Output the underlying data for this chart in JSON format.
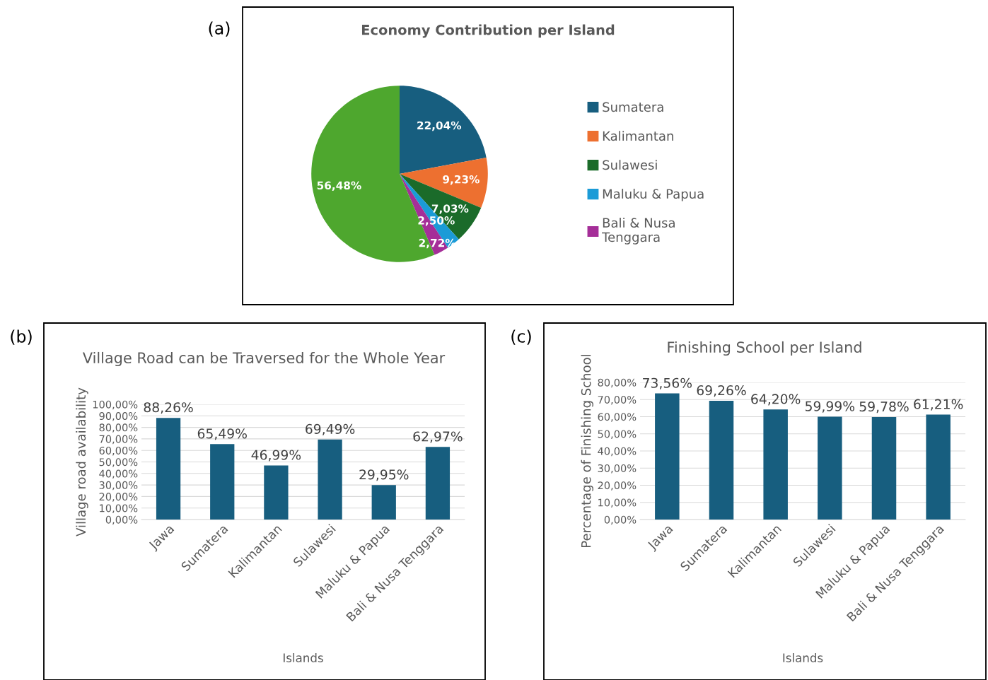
{
  "chart_data": [
    {
      "type": "pie",
      "title": "Economy Contribution per Island",
      "annotations": [
        "(a)"
      ],
      "categories": [
        "Sumatera",
        "Kalimantan",
        "Sulawesi",
        "Maluku & Papua",
        "Bali & Nusa Tenggara",
        null
      ],
      "values": [
        22.04,
        9.23,
        7.03,
        2.5,
        2.72,
        56.48
      ],
      "value_labels": [
        "22,04%",
        "9,23%",
        "7,03%",
        "2,50%",
        "2,72%",
        "56,48%"
      ],
      "colors": [
        "#175e7f",
        "#ed7030",
        "#1b6b2a",
        "#1b9bd7",
        "#a52e98",
        "#4ea72e"
      ],
      "legend": "right"
    },
    {
      "type": "bar",
      "title": "Village Road can be Traversed for the Whole Year",
      "annotations": [
        "(b)"
      ],
      "xlabel": "Islands",
      "ylabel": "Village road availability",
      "categories": [
        "Jawa",
        "Sumatera",
        "Kalimantan",
        "Sulawesi",
        "Maluku & Papua",
        "Bali & Nusa Tenggara"
      ],
      "values": [
        88.26,
        65.49,
        46.99,
        69.49,
        29.95,
        62.97
      ],
      "value_labels": [
        "88,26%",
        "65,49%",
        "46,99%",
        "69,49%",
        "29,95%",
        "62,97%"
      ],
      "color": "#175e7f",
      "ylim": [
        0,
        100
      ],
      "yticks": [
        {
          "value": 0,
          "label": "0,00%"
        },
        {
          "value": 10,
          "label": "10,00%"
        },
        {
          "value": 20,
          "label": "20,00%"
        },
        {
          "value": 30,
          "label": "30,00%"
        },
        {
          "value": 40,
          "label": "40,00%"
        },
        {
          "value": 50,
          "label": "50,00%"
        },
        {
          "value": 60,
          "label": "60,00%"
        },
        {
          "value": 70,
          "label": "70,00%"
        },
        {
          "value": 80,
          "label": "80,00%"
        },
        {
          "value": 90,
          "label": "90,00%"
        },
        {
          "value": 100,
          "label": "100,00%"
        }
      ],
      "grid": "y"
    },
    {
      "type": "bar",
      "title": "Finishing School per Island",
      "annotations": [
        "(c)"
      ],
      "xlabel": "Islands",
      "ylabel": "Percentage of Finishing School",
      "categories": [
        "Jawa",
        "Sumatera",
        "Kalimantan",
        "Sulawesi",
        "Maluku & Papua",
        "Bali & Nusa Tenggara"
      ],
      "values": [
        73.56,
        69.26,
        64.2,
        59.99,
        59.78,
        61.21
      ],
      "value_labels": [
        "73,56%",
        "69,26%",
        "64,20%",
        "59,99%",
        "59,78%",
        "61,21%"
      ],
      "color": "#175e7f",
      "ylim": [
        0,
        80
      ],
      "yticks": [
        {
          "value": 0,
          "label": "0,00%"
        },
        {
          "value": 10,
          "label": "10,00%"
        },
        {
          "value": 20,
          "label": "20,00%"
        },
        {
          "value": 30,
          "label": "30,00%"
        },
        {
          "value": 40,
          "label": "40,00%"
        },
        {
          "value": 50,
          "label": "50,00%"
        },
        {
          "value": 60,
          "label": "60,00%"
        },
        {
          "value": 70,
          "label": "70,00%"
        },
        {
          "value": 80,
          "label": "80,00%"
        }
      ],
      "grid": "y"
    }
  ]
}
